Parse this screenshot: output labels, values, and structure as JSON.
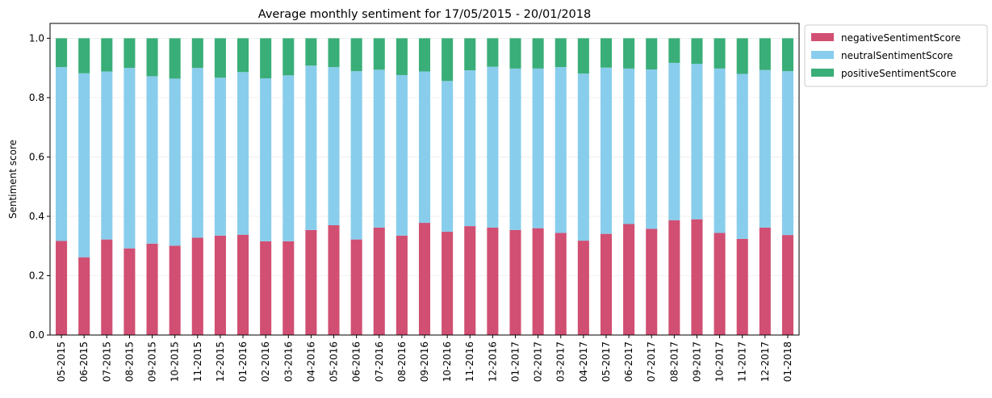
{
  "chart_data": {
    "type": "bar",
    "stacked": true,
    "title": "Average monthly sentiment for 17/05/2015 - 20/01/2018",
    "xlabel": "",
    "ylabel": "Sentiment score",
    "ylim": [
      0.0,
      1.05
    ],
    "yticks": [
      "0.0",
      "0.2",
      "0.4",
      "0.6",
      "0.8",
      "1.0"
    ],
    "grid": true,
    "legend_position": "outside-top-right",
    "categories": [
      "05-2015",
      "06-2015",
      "07-2015",
      "08-2015",
      "09-2015",
      "10-2015",
      "11-2015",
      "12-2015",
      "01-2016",
      "02-2016",
      "03-2016",
      "04-2016",
      "05-2016",
      "06-2016",
      "07-2016",
      "08-2016",
      "09-2016",
      "10-2016",
      "11-2016",
      "12-2016",
      "01-2017",
      "02-2017",
      "03-2017",
      "04-2017",
      "05-2017",
      "06-2017",
      "07-2017",
      "08-2017",
      "09-2017",
      "10-2017",
      "11-2017",
      "12-2017",
      "01-2018"
    ],
    "series": [
      {
        "name": "negativeSentimentScore",
        "color": "#d14f72",
        "values": [
          0.317,
          0.262,
          0.322,
          0.292,
          0.308,
          0.301,
          0.328,
          0.335,
          0.338,
          0.316,
          0.316,
          0.354,
          0.37,
          0.322,
          0.362,
          0.335,
          0.378,
          0.348,
          0.367,
          0.362,
          0.354,
          0.36,
          0.344,
          0.318,
          0.341,
          0.374,
          0.358,
          0.387,
          0.39,
          0.344,
          0.324,
          0.362,
          0.337
        ]
      },
      {
        "name": "neutralSentimentScore",
        "color": "#89cdec",
        "values": [
          0.586,
          0.62,
          0.566,
          0.608,
          0.564,
          0.563,
          0.572,
          0.532,
          0.548,
          0.549,
          0.559,
          0.554,
          0.533,
          0.567,
          0.532,
          0.541,
          0.51,
          0.508,
          0.525,
          0.542,
          0.544,
          0.538,
          0.559,
          0.563,
          0.56,
          0.524,
          0.537,
          0.53,
          0.524,
          0.554,
          0.556,
          0.531,
          0.552
        ]
      },
      {
        "name": "positiveSentimentScore",
        "color": "#3aae78",
        "values": [
          0.097,
          0.118,
          0.112,
          0.1,
          0.128,
          0.136,
          0.1,
          0.133,
          0.114,
          0.135,
          0.125,
          0.092,
          0.097,
          0.111,
          0.106,
          0.124,
          0.112,
          0.144,
          0.108,
          0.096,
          0.102,
          0.102,
          0.097,
          0.119,
          0.099,
          0.102,
          0.105,
          0.083,
          0.086,
          0.102,
          0.12,
          0.107,
          0.111
        ]
      }
    ]
  }
}
